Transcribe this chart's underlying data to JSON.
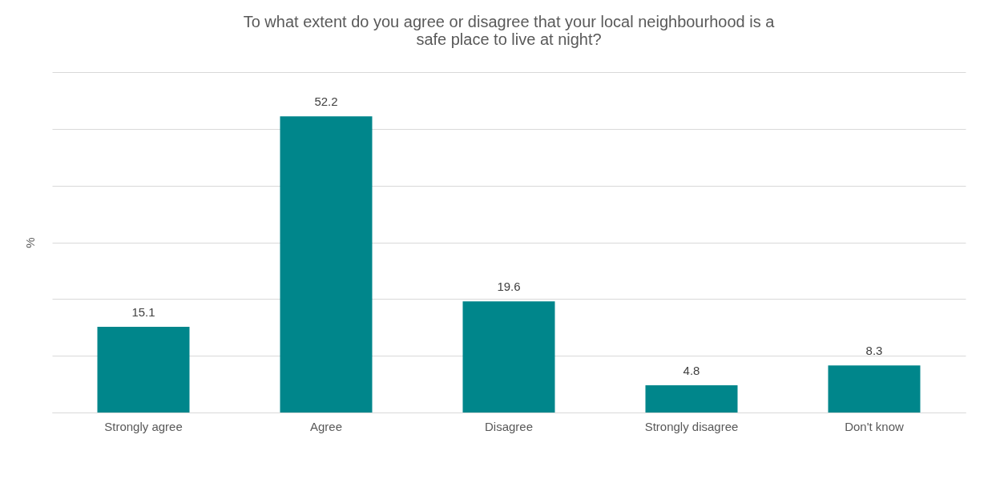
{
  "chart_data": {
    "type": "bar",
    "title": "To what extent do you agree or disagree that your local neighbourhood is a safe place to live at night?",
    "ylabel": "%",
    "categories": [
      "Strongly agree",
      "Agree",
      "Disagree",
      "Strongly disagree",
      "Don't know"
    ],
    "values": [
      15.1,
      52.2,
      19.6,
      4.8,
      8.3
    ],
    "color": "#00868b",
    "ylim": [
      0,
      60
    ],
    "yticks": [
      {
        "value": 0,
        "label": null
      },
      {
        "value": 10,
        "label": null
      },
      {
        "value": 20,
        "label": null
      },
      {
        "value": 30,
        "label": null
      },
      {
        "value": 40,
        "label": null
      },
      {
        "value": 50,
        "label": null
      },
      {
        "value": 60,
        "label": null
      }
    ],
    "tick_labels": "x",
    "grid": "y",
    "data_labels": true
  }
}
